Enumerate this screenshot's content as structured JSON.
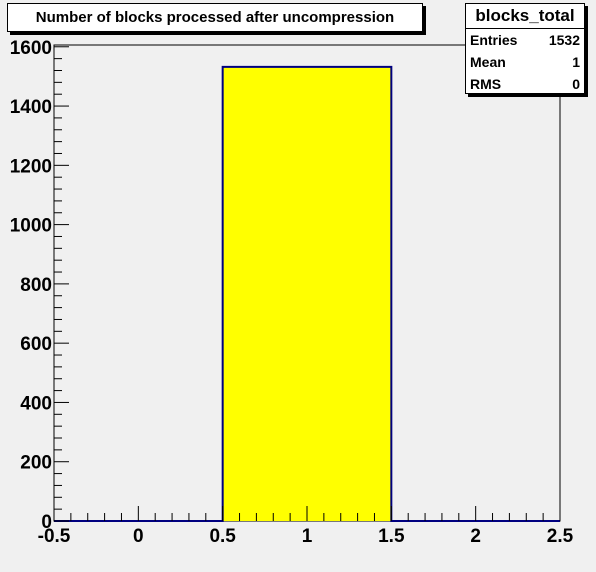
{
  "chart_data": {
    "type": "bar",
    "title": "Number of blocks processed after uncompression",
    "histogram_name": "blocks_total",
    "bins": [
      {
        "low": -0.5,
        "high": 0.5,
        "value": 0
      },
      {
        "low": 0.5,
        "high": 1.5,
        "value": 1532
      },
      {
        "low": 1.5,
        "high": 2.5,
        "value": 0
      }
    ],
    "xlim": [
      -0.5,
      2.5
    ],
    "ylim": [
      0,
      1606
    ],
    "x_ticks": [
      "-0.5",
      "0",
      "0.5",
      "1",
      "1.5",
      "2",
      "2.5"
    ],
    "y_ticks": [
      "0",
      "200",
      "400",
      "600",
      "800",
      "1000",
      "1200",
      "1400",
      "1600"
    ],
    "xlabel": "",
    "ylabel": "",
    "grid": false,
    "bar_fill_color": "#ffff00",
    "bar_line_color": "#000080",
    "stats": [
      {
        "label": "Entries",
        "value": "1532"
      },
      {
        "label": "Mean",
        "value": "1"
      },
      {
        "label": "RMS",
        "value": "0"
      }
    ]
  }
}
